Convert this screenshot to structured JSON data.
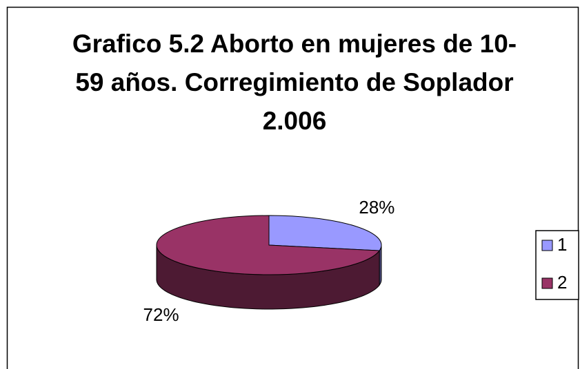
{
  "chart_data": {
    "type": "pie",
    "title": "Grafico 5.2 Aborto en mujeres de 10-59 años. Corregimiento de Soplador 2.006",
    "categories": [
      "1",
      "2"
    ],
    "values": [
      28,
      72
    ],
    "value_labels": [
      "28%",
      "72%"
    ],
    "colors": [
      "#9999ff",
      "#993366"
    ],
    "legend": "right"
  }
}
